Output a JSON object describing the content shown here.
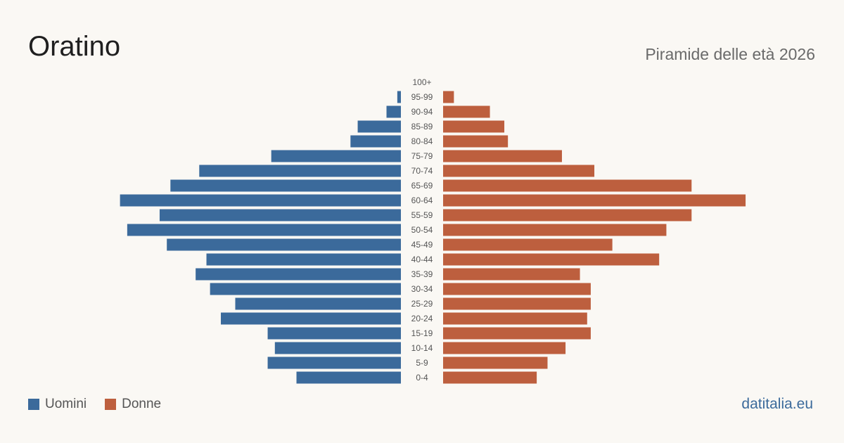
{
  "header": {
    "title": "Oratino",
    "subtitle": "Piramide delle età 2026"
  },
  "legend": {
    "men_label": "Uomini",
    "women_label": "Donne"
  },
  "source": "datitalia.eu",
  "colors": {
    "men": "#3b6a9b",
    "women": "#bd5f3e",
    "background": "#faf8f4",
    "age_label": "#555555"
  },
  "chart_data": {
    "type": "bar",
    "orientation": "horizontal-pyramid",
    "categories": [
      "100+",
      "95-99",
      "90-94",
      "85-89",
      "80-84",
      "75-79",
      "70-74",
      "65-69",
      "60-64",
      "55-59",
      "50-54",
      "45-49",
      "40-44",
      "35-39",
      "30-34",
      "25-29",
      "20-24",
      "15-19",
      "10-14",
      "5-9",
      "0-4"
    ],
    "series": [
      {
        "name": "Uomini",
        "values": [
          0,
          1,
          4,
          12,
          14,
          36,
          56,
          64,
          78,
          67,
          76,
          65,
          54,
          57,
          53,
          46,
          50,
          37,
          35,
          37,
          29
        ]
      },
      {
        "name": "Donne",
        "values": [
          0,
          3,
          13,
          17,
          18,
          33,
          42,
          69,
          84,
          69,
          62,
          47,
          60,
          38,
          41,
          41,
          40,
          41,
          34,
          29,
          26
        ]
      }
    ],
    "legend_position": "bottom-left",
    "grid": false
  }
}
